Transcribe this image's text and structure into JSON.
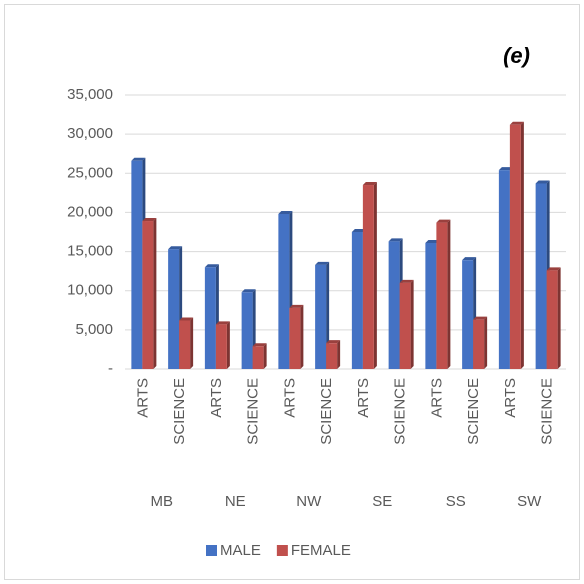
{
  "chart_data": {
    "type": "bar",
    "annotation": "(e)",
    "categories": [
      "ARTS",
      "SCIENCE",
      "ARTS",
      "SCIENCE",
      "ARTS",
      "SCIENCE",
      "ARTS",
      "SCIENCE",
      "ARTS",
      "SCIENCE",
      "ARTS",
      "SCIENCE"
    ],
    "groups": [
      "MB",
      "NE",
      "NW",
      "SE",
      "SS",
      "SW"
    ],
    "series": [
      {
        "name": "MALE",
        "color": "#4472c4",
        "values": [
          26600,
          15300,
          13000,
          9800,
          19800,
          13300,
          17500,
          16300,
          16100,
          13900,
          25400,
          23700
        ]
      },
      {
        "name": "FEMALE",
        "color": "#c0504d",
        "values": [
          18900,
          6200,
          5700,
          2900,
          7800,
          3300,
          23500,
          11000,
          18700,
          6300,
          31200,
          12600
        ]
      }
    ],
    "ylim": [
      0,
      35000
    ],
    "yticks": [
      {
        "value": 0,
        "label": "-"
      },
      {
        "value": 5000,
        "label": "5,000"
      },
      {
        "value": 10000,
        "label": "10,000"
      },
      {
        "value": 15000,
        "label": "15,000"
      },
      {
        "value": 20000,
        "label": "20,000"
      },
      {
        "value": 25000,
        "label": "25,000"
      },
      {
        "value": 30000,
        "label": "30,000"
      },
      {
        "value": 35000,
        "label": "35,000"
      }
    ],
    "grid": true,
    "legend": "bottom"
  }
}
